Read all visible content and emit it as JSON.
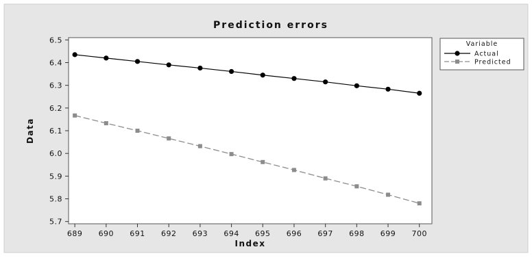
{
  "chart_data": {
    "type": "line",
    "title": "Prediction errors",
    "xlabel": "Index",
    "ylabel": "Data",
    "x": [
      689,
      690,
      691,
      692,
      693,
      694,
      695,
      696,
      697,
      698,
      699,
      700
    ],
    "xlim": [
      688.8,
      700.4
    ],
    "ylim": [
      5.69,
      6.51
    ],
    "yticks": [
      "5.7",
      "5.8",
      "5.9",
      "6.0",
      "6.1",
      "6.2",
      "6.3",
      "6.4",
      "6.5"
    ],
    "xticks": [
      "689",
      "690",
      "691",
      "692",
      "693",
      "694",
      "695",
      "696",
      "697",
      "698",
      "699",
      "700"
    ],
    "grid": false,
    "legend": {
      "title": "Variable",
      "position": "top-right-outside"
    },
    "series": [
      {
        "name": "Actual",
        "color": "#000000",
        "marker": "circle",
        "line_style": "solid",
        "values": [
          6.435,
          6.42,
          6.405,
          6.39,
          6.376,
          6.361,
          6.345,
          6.33,
          6.315,
          6.298,
          6.283,
          6.265
        ]
      },
      {
        "name": "Predicted",
        "color": "#8c8c8c",
        "marker": "square",
        "line_style": "dashed",
        "values": [
          6.167,
          6.133,
          6.1,
          6.066,
          6.032,
          5.997,
          5.962,
          5.927,
          5.89,
          5.855,
          5.818,
          5.78
        ]
      }
    ]
  }
}
